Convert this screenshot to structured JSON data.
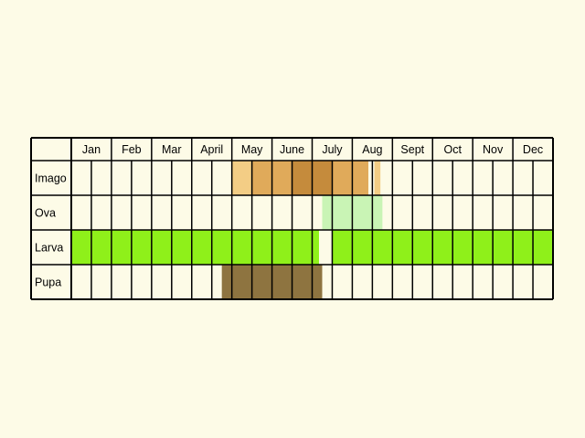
{
  "colors": {
    "background": "#fdfbe7",
    "cell": "#fdfbe7",
    "grid": "#000000",
    "imago_light": "#f3cd85",
    "imago_mid": "#e0aa5a",
    "imago_dark": "#c58b3c",
    "ova": "#c9f4b5",
    "larva": "#8ff01a",
    "pupa": "#8e7440"
  },
  "chart_data": {
    "type": "table",
    "months": [
      "Jan",
      "Feb",
      "Mar",
      "April",
      "May",
      "June",
      "July",
      "Aug",
      "Sept",
      "Oct",
      "Nov",
      "Dec"
    ],
    "stages": [
      {
        "key": "imago",
        "label": "Imago",
        "periods": [
          {
            "start": 5.0,
            "end": 5.5,
            "color": "imago_light"
          },
          {
            "start": 5.5,
            "end": 6.0,
            "color": "imago_mid"
          },
          {
            "start": 6.0,
            "end": 6.5,
            "color": "imago_mid"
          },
          {
            "start": 6.5,
            "end": 7.0,
            "color": "imago_dark"
          },
          {
            "start": 7.0,
            "end": 7.5,
            "color": "imago_dark"
          },
          {
            "start": 7.5,
            "end": 8.0,
            "color": "imago_mid"
          },
          {
            "start": 8.0,
            "end": 8.4,
            "color": "imago_mid"
          },
          {
            "start": 8.55,
            "end": 8.7,
            "color": "imago_light"
          }
        ]
      },
      {
        "key": "ova",
        "label": "Ova",
        "periods": [
          {
            "start": 7.25,
            "end": 8.75,
            "color": "ova"
          }
        ]
      },
      {
        "key": "larva",
        "label": "Larva",
        "periods": [
          {
            "start": 1.0,
            "end": 7.17,
            "color": "larva"
          },
          {
            "start": 7.5,
            "end": 13.0,
            "color": "larva"
          }
        ]
      },
      {
        "key": "pupa",
        "label": "Pupa",
        "periods": [
          {
            "start": 4.75,
            "end": 7.25,
            "color": "pupa"
          }
        ]
      }
    ]
  }
}
